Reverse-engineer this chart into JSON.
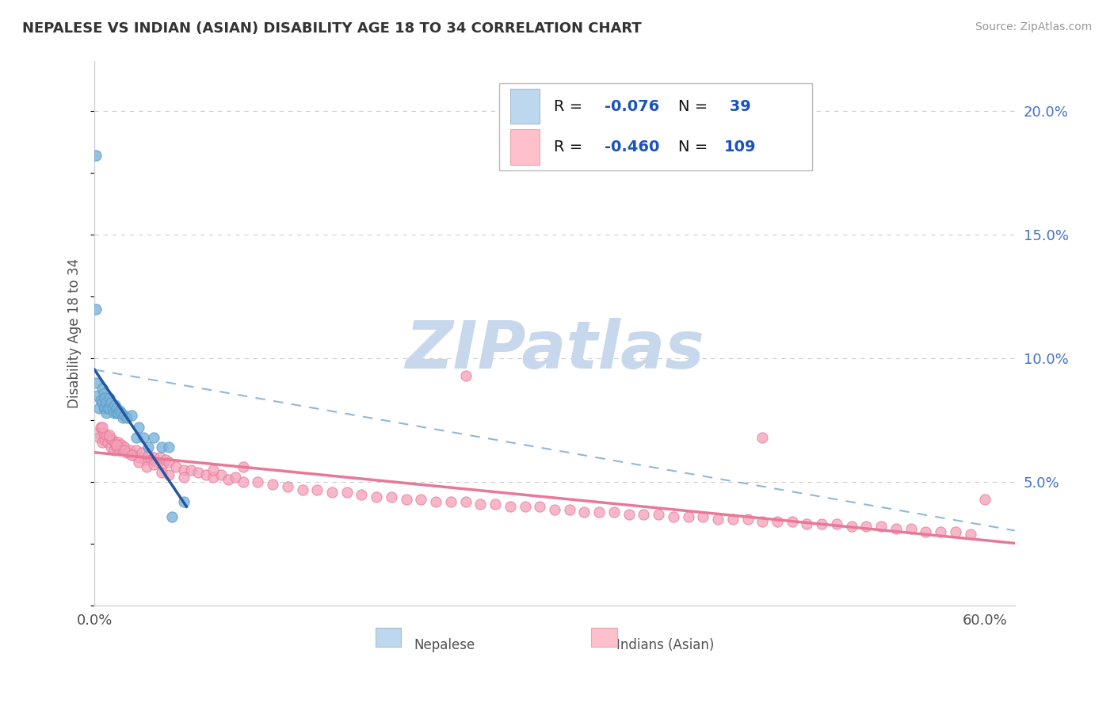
{
  "title": "NEPALESE VS INDIAN (ASIAN) DISABILITY AGE 18 TO 34 CORRELATION CHART",
  "source": "Source: ZipAtlas.com",
  "ylabel": "Disability Age 18 to 34",
  "xlim": [
    0.0,
    0.62
  ],
  "ylim": [
    0.0,
    0.22
  ],
  "xtick_labels_show": [
    "0.0%",
    "60.0%"
  ],
  "yticks_right": [
    0.05,
    0.1,
    0.15,
    0.2
  ],
  "ytick_labels_right": [
    "5.0%",
    "10.0%",
    "15.0%",
    "20.0%"
  ],
  "color_blue_scatter": "#7ab3d9",
  "color_blue_edge": "#5a9ec8",
  "color_pink_scatter": "#f4a0b8",
  "color_pink_edge": "#e87898",
  "color_line_blue": "#2355a0",
  "color_line_pink": "#e87898",
  "color_dashed": "#90b8d8",
  "color_grid": "#cccccc",
  "title_color": "#333333",
  "source_color": "#999999",
  "background_color": "#ffffff",
  "watermark_color": "#c8d8ec",
  "legend_box_color": "#e8f0f8",
  "legend_border_color": "#bbbbbb",
  "legend_text_color": "#1a52c0",
  "legend_r1": "R = ",
  "legend_v1": "-0.076",
  "legend_n1_label": "N = ",
  "legend_n1_val": " 39",
  "legend_r2": "R = ",
  "legend_v2": "-0.460",
  "legend_n2_label": "N = ",
  "legend_n2_val": "109",
  "nep_x": [
    0.001,
    0.001,
    0.002,
    0.003,
    0.004,
    0.005,
    0.005,
    0.006,
    0.006,
    0.007,
    0.007,
    0.008,
    0.008,
    0.009,
    0.01,
    0.01,
    0.011,
    0.012,
    0.013,
    0.014,
    0.015,
    0.015,
    0.016,
    0.017,
    0.018,
    0.019,
    0.02,
    0.022,
    0.025,
    0.028,
    0.03,
    0.033,
    0.036,
    0.04,
    0.045,
    0.05,
    0.052,
    0.001,
    0.06
  ],
  "nep_y": [
    0.09,
    0.182,
    0.085,
    0.08,
    0.083,
    0.088,
    0.082,
    0.086,
    0.08,
    0.084,
    0.08,
    0.082,
    0.078,
    0.08,
    0.084,
    0.08,
    0.082,
    0.08,
    0.078,
    0.081,
    0.078,
    0.08,
    0.078,
    0.079,
    0.078,
    0.076,
    0.077,
    0.076,
    0.077,
    0.068,
    0.072,
    0.068,
    0.064,
    0.068,
    0.064,
    0.064,
    0.036,
    0.12,
    0.042
  ],
  "ind_x": [
    0.002,
    0.003,
    0.004,
    0.005,
    0.006,
    0.007,
    0.008,
    0.009,
    0.01,
    0.011,
    0.012,
    0.013,
    0.014,
    0.015,
    0.016,
    0.017,
    0.018,
    0.019,
    0.02,
    0.022,
    0.024,
    0.026,
    0.028,
    0.03,
    0.032,
    0.034,
    0.036,
    0.038,
    0.04,
    0.042,
    0.044,
    0.046,
    0.048,
    0.05,
    0.055,
    0.06,
    0.065,
    0.07,
    0.075,
    0.08,
    0.085,
    0.09,
    0.095,
    0.1,
    0.11,
    0.12,
    0.13,
    0.14,
    0.15,
    0.16,
    0.17,
    0.18,
    0.19,
    0.2,
    0.21,
    0.22,
    0.23,
    0.24,
    0.25,
    0.26,
    0.27,
    0.28,
    0.29,
    0.3,
    0.31,
    0.32,
    0.33,
    0.34,
    0.35,
    0.36,
    0.37,
    0.38,
    0.39,
    0.4,
    0.41,
    0.42,
    0.43,
    0.44,
    0.45,
    0.46,
    0.47,
    0.48,
    0.49,
    0.5,
    0.51,
    0.52,
    0.53,
    0.54,
    0.55,
    0.56,
    0.57,
    0.58,
    0.59,
    0.6,
    0.005,
    0.01,
    0.015,
    0.02,
    0.025,
    0.03,
    0.035,
    0.04,
    0.045,
    0.05,
    0.06,
    0.08,
    0.1,
    0.25,
    0.45
  ],
  "ind_y": [
    0.07,
    0.068,
    0.072,
    0.066,
    0.07,
    0.067,
    0.069,
    0.066,
    0.068,
    0.064,
    0.067,
    0.063,
    0.066,
    0.064,
    0.066,
    0.063,
    0.065,
    0.063,
    0.064,
    0.062,
    0.063,
    0.061,
    0.063,
    0.06,
    0.062,
    0.059,
    0.061,
    0.059,
    0.06,
    0.058,
    0.06,
    0.057,
    0.059,
    0.058,
    0.056,
    0.055,
    0.055,
    0.054,
    0.053,
    0.052,
    0.053,
    0.051,
    0.052,
    0.05,
    0.05,
    0.049,
    0.048,
    0.047,
    0.047,
    0.046,
    0.046,
    0.045,
    0.044,
    0.044,
    0.043,
    0.043,
    0.042,
    0.042,
    0.042,
    0.041,
    0.041,
    0.04,
    0.04,
    0.04,
    0.039,
    0.039,
    0.038,
    0.038,
    0.038,
    0.037,
    0.037,
    0.037,
    0.036,
    0.036,
    0.036,
    0.035,
    0.035,
    0.035,
    0.034,
    0.034,
    0.034,
    0.033,
    0.033,
    0.033,
    0.032,
    0.032,
    0.032,
    0.031,
    0.031,
    0.03,
    0.03,
    0.03,
    0.029,
    0.043,
    0.072,
    0.069,
    0.065,
    0.063,
    0.061,
    0.058,
    0.056,
    0.057,
    0.054,
    0.053,
    0.052,
    0.055,
    0.056,
    0.093,
    0.068
  ]
}
